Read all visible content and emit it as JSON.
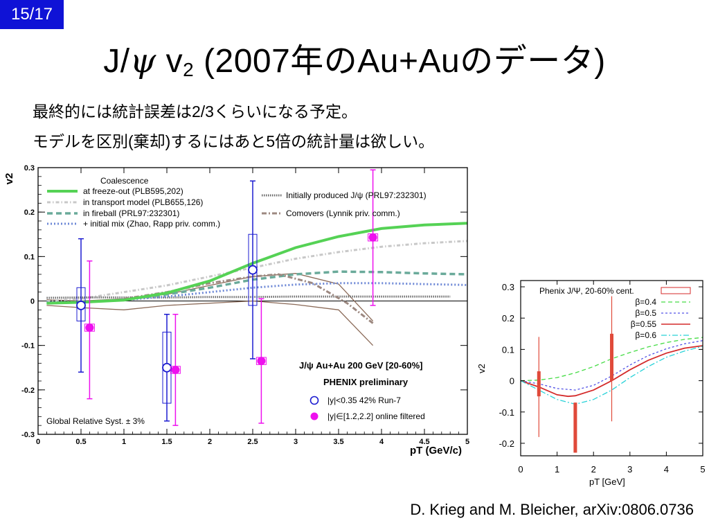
{
  "slide": {
    "page_number": "15/17",
    "title_prefix": "J/",
    "title_psi": "ψ",
    "title_v": " v",
    "title_sub": "2",
    "title_suffix": " (2007年のAu+Auのデータ)",
    "line1": "最終的には統計誤差は2/3くらいになる予定。",
    "line2": "モデルを区別(棄却)するにはあと5倍の統計量は欲しい。",
    "credit": "D. Krieg and M. Bleicher, arXiv:0806.0736"
  },
  "chart_data": [
    {
      "type": "scatter",
      "ylabel": "v2",
      "xlabel": "pT (GeV/c)",
      "xlim": [
        0,
        5
      ],
      "ylim": [
        -0.3,
        0.3
      ],
      "x_ticks": [
        "0",
        "0.5",
        "1",
        "1.5",
        "2",
        "2.5",
        "3",
        "3.5",
        "4",
        "4.5",
        "5"
      ],
      "y_ticks": [
        "0.3",
        "0.2",
        "0.1",
        "0",
        "-0.1",
        "-0.2",
        "-0.3"
      ],
      "legend_heading": "Coalescence",
      "legend_model_lines": [
        "at freeze-out (PLB595,202)",
        "in transport model (PLB655,126)",
        "in fireball (PRL97:232301)",
        "+ initial mix (Zhao, Rapp priv. comm.)"
      ],
      "legend_other_lines": [
        "Initially produced J/ψ (PRL97:232301)",
        "Comovers (Lynnik priv. comm.)"
      ],
      "annotation_line1": "J/ψ Au+Au 200 GeV [20-60%]",
      "annotation_line2": "PHENIX preliminary",
      "syst_note": "Global Relative Syst. ± 3%",
      "colors": {
        "freezeout": "#55d255",
        "transport": "#c8c8c8",
        "fireball": "#6aaa9a",
        "initmix": "#6d88d6",
        "initial": "#6a6a6a",
        "comovers": "#9c8880",
        "band": "#8b6a58",
        "run7": "#1b1bd0",
        "online": "#ee10ee"
      },
      "model_curves": {
        "freezeout": {
          "x": [
            0.1,
            0.5,
            1.0,
            1.5,
            2.0,
            2.5,
            3.0,
            3.5,
            4.0,
            4.5,
            5.0
          ],
          "y": [
            -0.005,
            -0.003,
            0.002,
            0.018,
            0.045,
            0.085,
            0.12,
            0.145,
            0.163,
            0.171,
            0.175
          ]
        },
        "transport": {
          "x": [
            0.1,
            0.5,
            1.0,
            1.5,
            2.0,
            2.5,
            3.0,
            3.5,
            4.0,
            4.5,
            5.0
          ],
          "y": [
            0.0,
            0.005,
            0.02,
            0.035,
            0.055,
            0.075,
            0.095,
            0.11,
            0.122,
            0.13,
            0.135
          ]
        },
        "fireball": {
          "x": [
            0.1,
            0.5,
            1.0,
            1.5,
            2.0,
            2.5,
            3.0,
            3.5,
            4.0,
            4.5,
            5.0
          ],
          "y": [
            -0.005,
            -0.003,
            0.003,
            0.015,
            0.03,
            0.048,
            0.06,
            0.066,
            0.065,
            0.062,
            0.06
          ]
        },
        "initmix": {
          "x": [
            0.1,
            0.5,
            1.0,
            1.5,
            2.0,
            2.5,
            3.0,
            3.5,
            4.0,
            4.5,
            5.0
          ],
          "y": [
            -0.003,
            -0.002,
            0.002,
            0.01,
            0.02,
            0.03,
            0.037,
            0.04,
            0.04,
            0.038,
            0.036
          ]
        },
        "initial": {
          "x": [
            0.1,
            0.5,
            1.0,
            1.5,
            2.0,
            2.5,
            3.0,
            3.5,
            4.0,
            4.5,
            4.8
          ],
          "y": [
            0.007,
            0.008,
            0.008,
            0.008,
            0.009,
            0.009,
            0.01,
            0.01,
            0.01,
            0.01,
            0.01
          ]
        },
        "comovers": {
          "x": [
            1.0,
            1.5,
            2.0,
            2.5,
            2.8,
            3.2,
            3.6,
            3.9
          ],
          "y": [
            0.005,
            0.02,
            0.04,
            0.055,
            0.06,
            0.04,
            -0.005,
            -0.05
          ]
        }
      },
      "comover_band_upper": {
        "x": [
          0.1,
          0.5,
          1.0,
          1.5,
          2.0,
          2.5,
          3.0,
          3.5,
          3.9
        ],
        "y": [
          0.003,
          0.0,
          0.005,
          0.015,
          0.035,
          0.055,
          0.062,
          0.038,
          -0.045
        ]
      },
      "comover_band_lower": {
        "x": [
          0.1,
          0.5,
          1.0,
          1.5,
          2.0,
          2.5,
          3.0,
          3.5,
          3.9
        ],
        "y": [
          -0.01,
          -0.015,
          -0.02,
          -0.01,
          -0.005,
          0.0,
          -0.008,
          -0.02,
          -0.1
        ]
      },
      "series": [
        {
          "name": "|y|<0.35 42% Run-7",
          "points": [
            {
              "x": 0.5,
              "y": -0.01,
              "lo": -0.16,
              "hi": 0.14,
              "slo": -0.045,
              "shi": 0.03
            },
            {
              "x": 1.5,
              "y": -0.15,
              "lo": -0.27,
              "hi": -0.03,
              "slo": -0.23,
              "shi": -0.07
            },
            {
              "x": 2.5,
              "y": 0.07,
              "lo": -0.13,
              "hi": 0.27,
              "slo": -0.01,
              "shi": 0.15
            }
          ]
        },
        {
          "name": "|y|∈[1.2,2.2] online filtered",
          "points": [
            {
              "x": 0.6,
              "y": -0.06,
              "lo": -0.22,
              "hi": 0.09,
              "slo": -0.065,
              "shi": -0.055
            },
            {
              "x": 1.6,
              "y": -0.155,
              "lo": -0.28,
              "hi": -0.03,
              "slo": -0.16,
              "shi": -0.15
            },
            {
              "x": 2.6,
              "y": -0.135,
              "lo": -0.275,
              "hi": 0.005,
              "slo": -0.14,
              "shi": -0.13
            },
            {
              "x": 3.9,
              "y": 0.143,
              "lo": -0.01,
              "hi": 0.295,
              "slo": 0.138,
              "shi": 0.148
            }
          ]
        }
      ]
    },
    {
      "type": "line",
      "ylabel": "v2",
      "xlabel": "pT [GeV]",
      "xlim": [
        0,
        5
      ],
      "ylim": [
        -0.24,
        0.32
      ],
      "x_ticks": [
        "0",
        "1",
        "2",
        "3",
        "4",
        "5"
      ],
      "y_ticks": [
        "0.3",
        "0.2",
        "0.1",
        "0",
        "-0.1",
        "-0.2"
      ],
      "colors": {
        "b04": "#46dc46",
        "b05": "#5050e6",
        "b055": "#d42a2a",
        "b06": "#28d2d8",
        "data": "#e04a3a"
      },
      "series": [
        {
          "name": "β=0.4",
          "x": [
            0,
            0.5,
            1,
            1.5,
            2,
            2.5,
            3,
            3.5,
            4,
            4.5,
            5
          ],
          "y": [
            0,
            0.002,
            0.01,
            0.025,
            0.045,
            0.07,
            0.09,
            0.108,
            0.122,
            0.132,
            0.138
          ]
        },
        {
          "name": "β=0.5",
          "x": [
            0,
            0.5,
            1,
            1.5,
            2,
            2.5,
            3,
            3.5,
            4,
            4.5,
            5
          ],
          "y": [
            0,
            -0.01,
            -0.025,
            -0.03,
            -0.015,
            0.015,
            0.05,
            0.08,
            0.102,
            0.118,
            0.128
          ]
        },
        {
          "name": "β=0.55",
          "x": [
            0,
            0.5,
            1,
            1.3,
            1.5,
            2,
            2.5,
            3,
            3.5,
            4,
            4.5,
            5
          ],
          "y": [
            0,
            -0.02,
            -0.045,
            -0.05,
            -0.048,
            -0.03,
            0.0,
            0.035,
            0.065,
            0.088,
            0.104,
            0.112
          ]
        },
        {
          "name": "β=0.6",
          "x": [
            0,
            0.5,
            1,
            1.5,
            2,
            2.5,
            3,
            3.5,
            4,
            4.5,
            5
          ],
          "y": [
            0,
            -0.03,
            -0.06,
            -0.075,
            -0.06,
            -0.03,
            0.01,
            0.045,
            0.075,
            0.095,
            0.11
          ]
        }
      ],
      "data_label": "Phenix J/Ψ, 20-60% cent.",
      "data_points": [
        {
          "x": 0.5,
          "lo": -0.18,
          "hi": 0.14,
          "blo": -0.05,
          "bhi": 0.03
        },
        {
          "x": 1.5,
          "lo": -0.23,
          "hi": -0.07,
          "blo": -0.23,
          "bhi": -0.07
        },
        {
          "x": 2.5,
          "lo": -0.13,
          "hi": 0.27,
          "blo": 0.0,
          "bhi": 0.15
        }
      ]
    }
  ]
}
